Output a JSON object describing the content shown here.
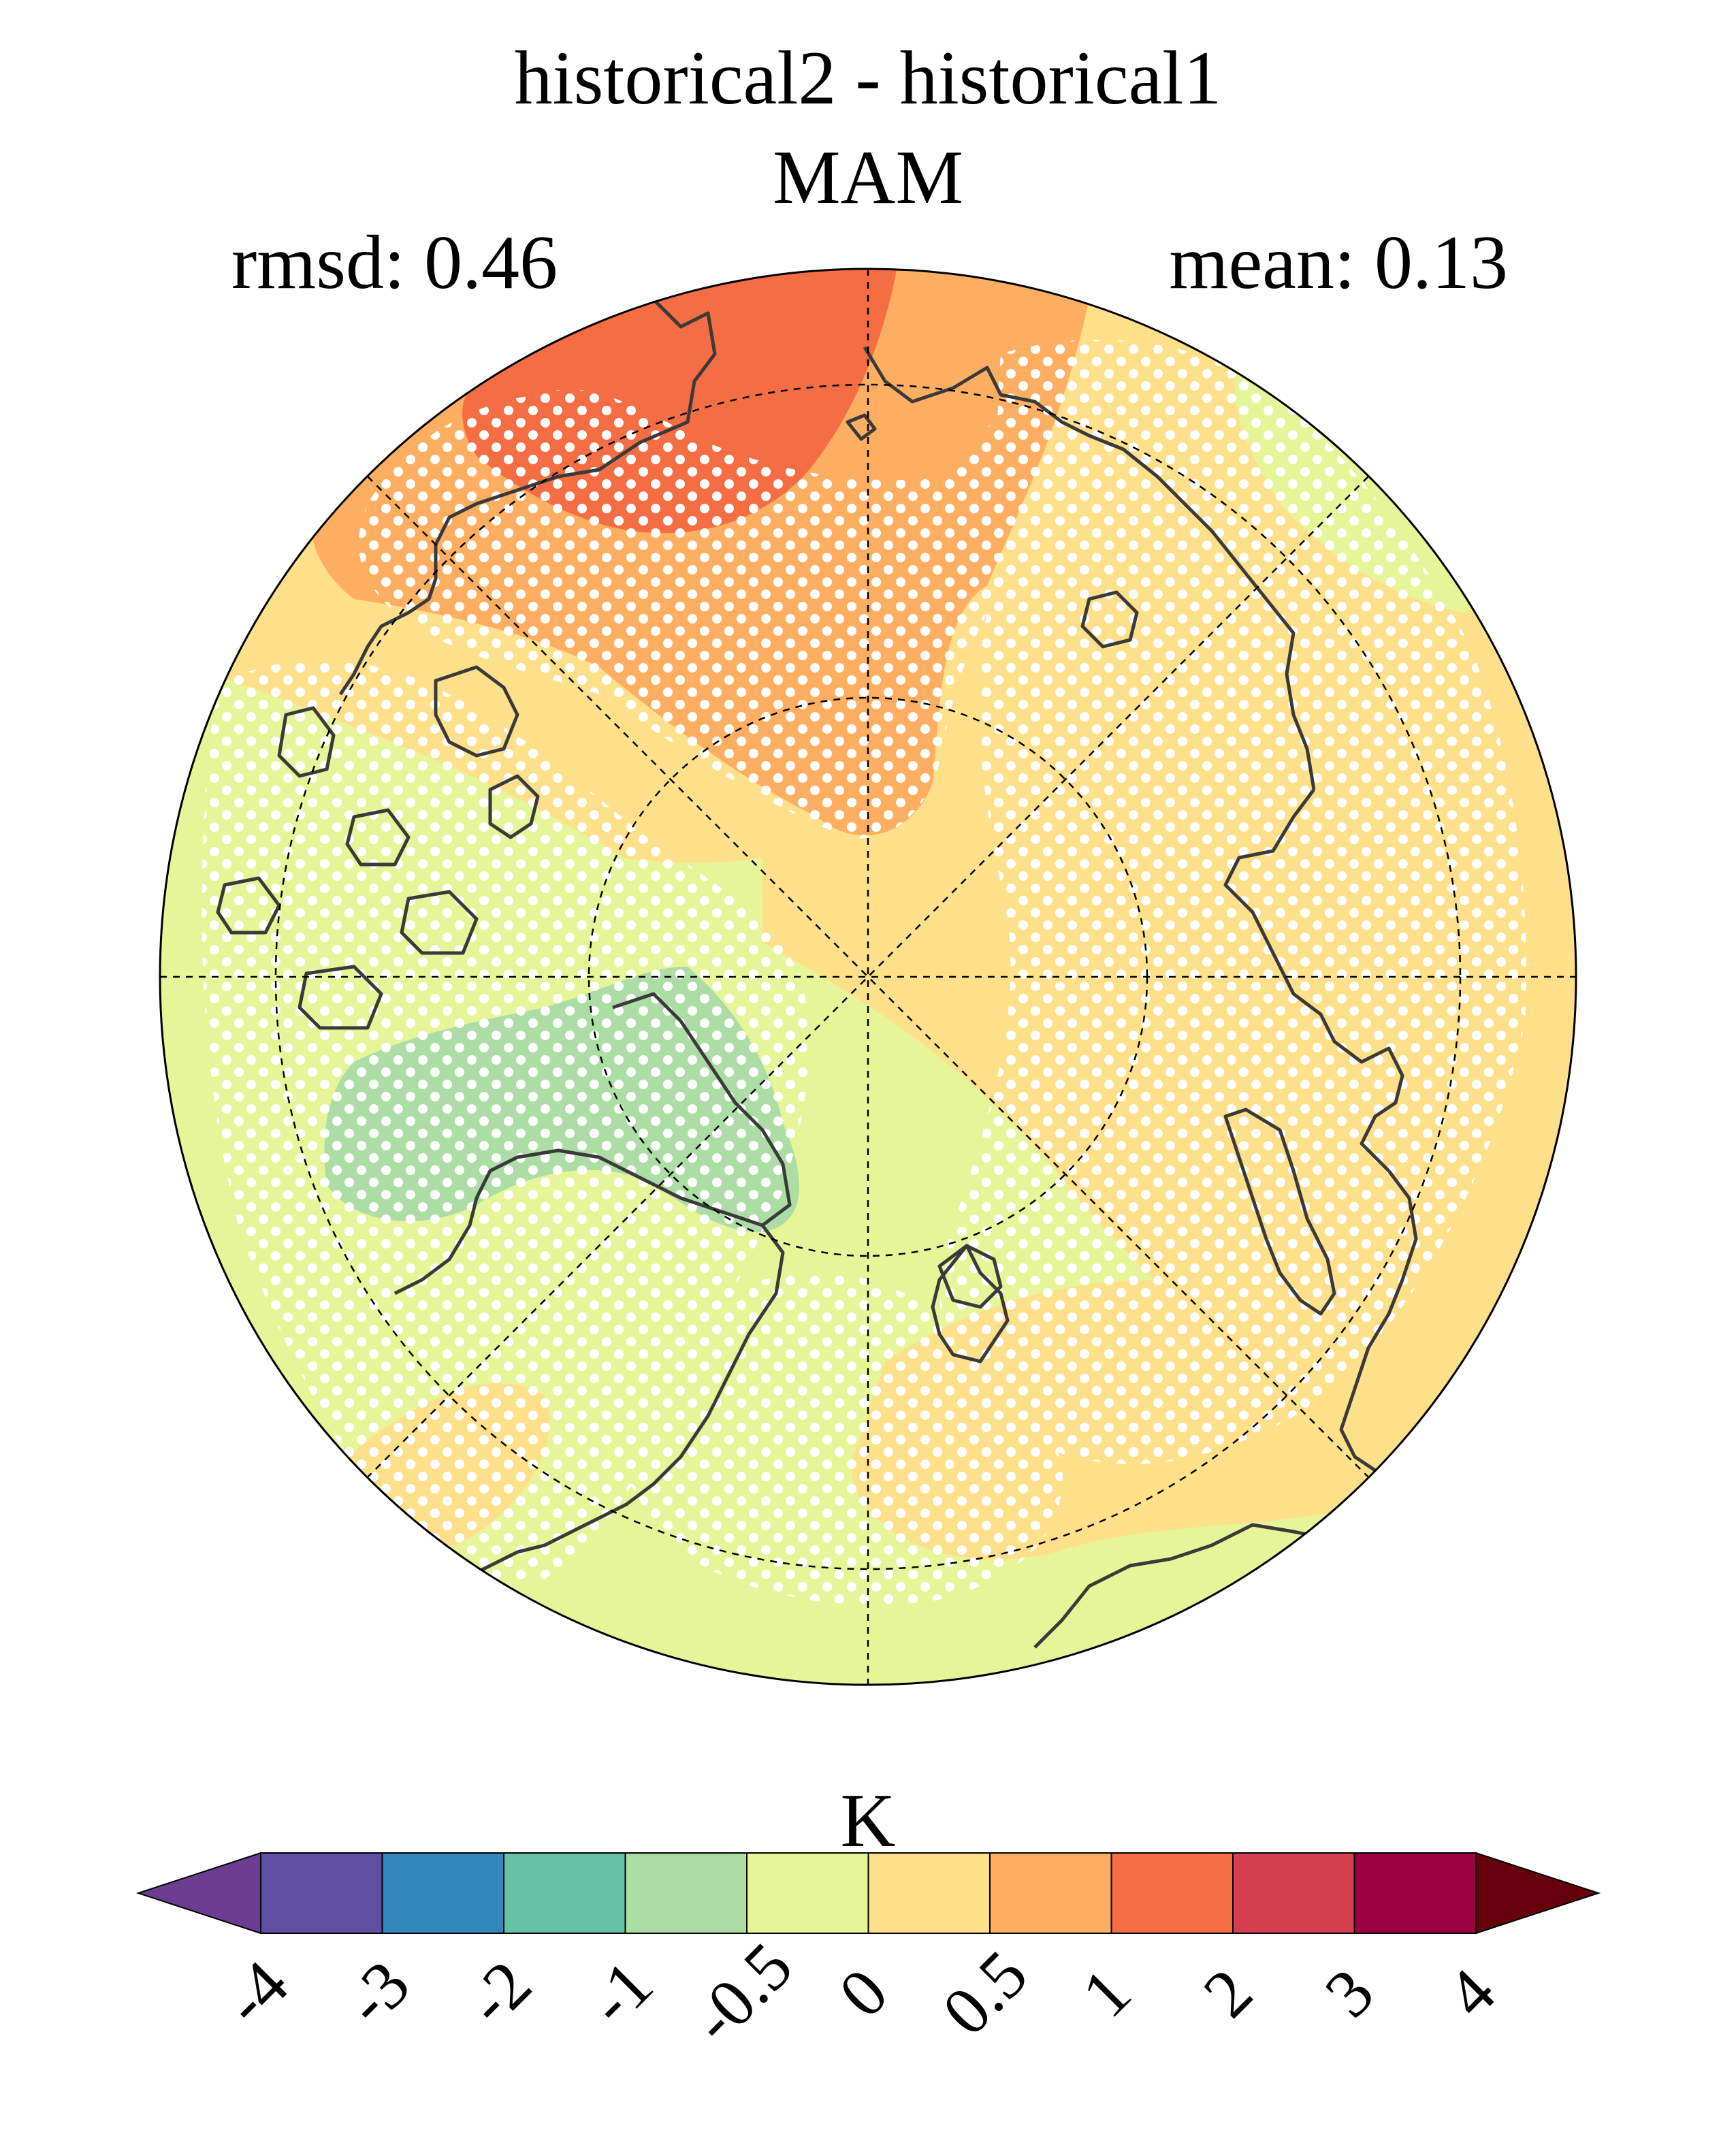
{
  "title": {
    "line1": "historical2 - historical1",
    "line2": "MAM"
  },
  "stats": {
    "rmsd": "rmsd: 0.46",
    "mean": "mean: 0.13"
  },
  "colorbar": {
    "unit": "K",
    "tick_labels": [
      "-4",
      "-3",
      "-2",
      "-1",
      "-0.5",
      "0",
      "0.5",
      "1",
      "2",
      "3",
      "4"
    ],
    "colors": [
      "#5e4fa2",
      "#3288bd",
      "#66c2a5",
      "#abdda4",
      "#e6f598",
      "#fee08b",
      "#fdae61",
      "#f46d43",
      "#d53e4f",
      "#9e0142"
    ],
    "under_color": "#6a3d8f",
    "over_color": "#67000d",
    "extend": "both"
  },
  "map": {
    "projection": "north polar stereographic",
    "hatching": "white dots mark stippled (significant) areas"
  }
}
